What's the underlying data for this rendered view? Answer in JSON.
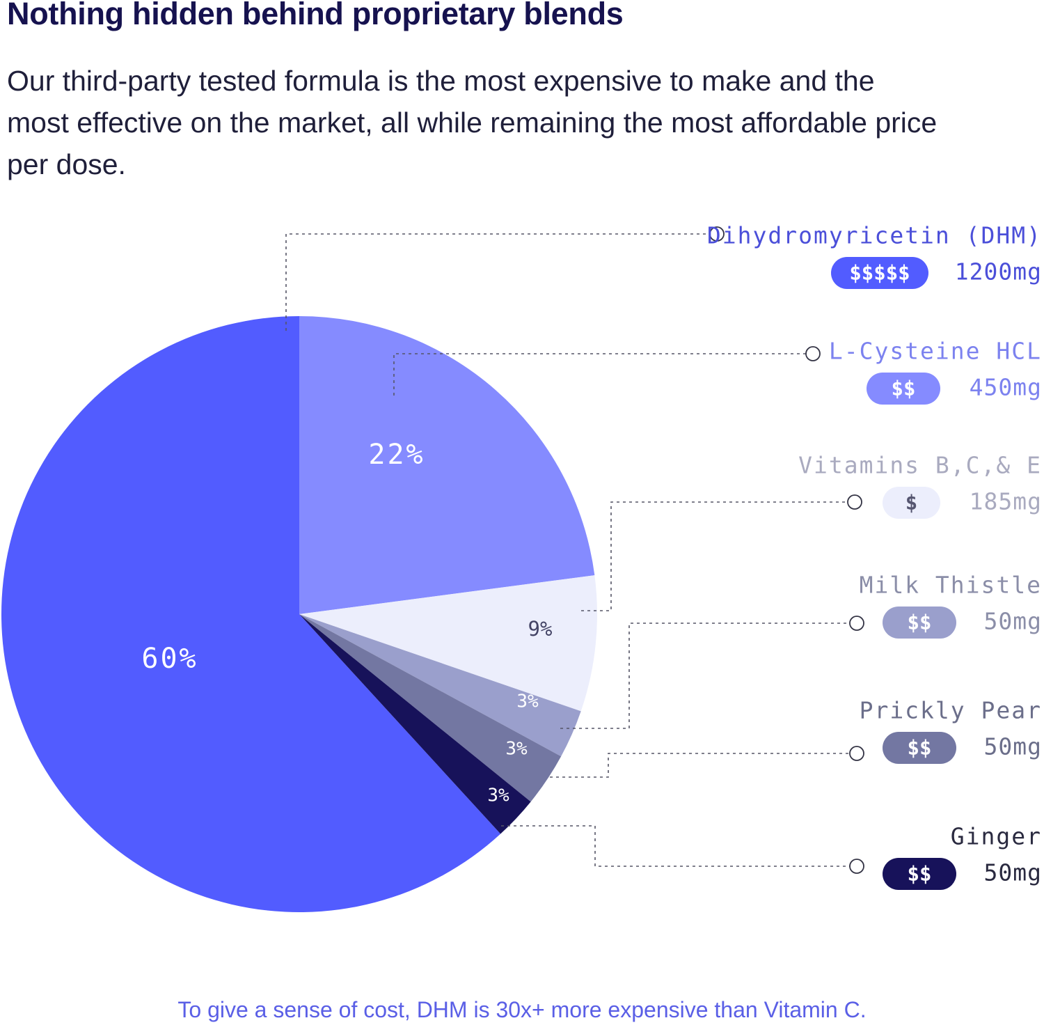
{
  "header": {
    "title": "Nothing hidden behind proprietary blends",
    "subtitle": "Our third-party tested formula is the most expensive to make and the most effective on the market, all while remaining the most affordable price per dose."
  },
  "footnote": "To give a sense of cost, DHM is 30x+ more expensive than Vitamin C.",
  "chart_data": {
    "type": "pie",
    "title": "",
    "slices": [
      {
        "name": "Dihydromyricetin (DHM)",
        "percent": 60,
        "label": "60%",
        "cost": "$$$$$",
        "dose": "1200mg",
        "color": "#525cff",
        "label_color": "#ffffff",
        "name_color": "#4b4fd9",
        "mg_color": "#4b4fd9",
        "badge_text_color": "#ffffff"
      },
      {
        "name": "L-Cysteine HCL",
        "percent": 22,
        "label": "22%",
        "cost": "$$",
        "dose": "450mg",
        "color": "#858bff",
        "label_color": "#ffffff",
        "name_color": "#7c82ef",
        "mg_color": "#7c82ef",
        "badge_text_color": "#ffffff"
      },
      {
        "name": "Vitamins B,C,& E",
        "percent": 9,
        "label": "9%",
        "cost": "$",
        "dose": "185mg",
        "color": "#eceefc",
        "label_color": "#444466",
        "name_color": "#a9aabf",
        "mg_color": "#a9aabf",
        "badge_text_color": "#555570"
      },
      {
        "name": "Milk Thistle",
        "percent": 3,
        "label": "3%",
        "cost": "$$",
        "dose": "50mg",
        "color": "#9a9fcc",
        "label_color": "#ffffff",
        "name_color": "#8b8ea8",
        "mg_color": "#8b8ea8",
        "badge_text_color": "#ffffff"
      },
      {
        "name": "Prickly Pear",
        "percent": 3,
        "label": "3%",
        "cost": "$$",
        "dose": "50mg",
        "color": "#7377a2",
        "label_color": "#ffffff",
        "name_color": "#6b6e8a",
        "mg_color": "#6b6e8a",
        "badge_text_color": "#ffffff"
      },
      {
        "name": "Ginger",
        "percent": 3,
        "label": "3%",
        "cost": "$$",
        "dose": "50mg",
        "color": "#17125a",
        "label_color": "#ffffff",
        "name_color": "#2a2a40",
        "mg_color": "#2a2a40",
        "badge_text_color": "#ffffff"
      }
    ]
  }
}
